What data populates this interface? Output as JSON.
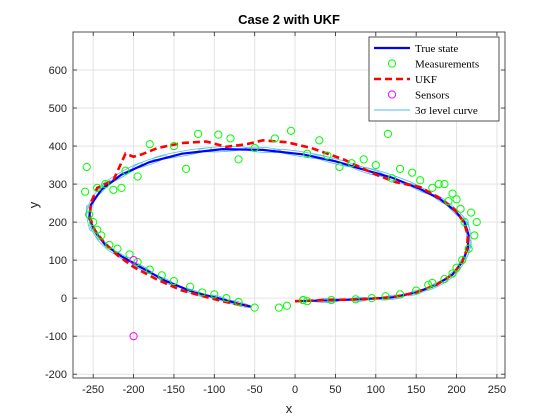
{
  "chart_data": {
    "type": "line",
    "title": "Case 2 with UKF",
    "xlabel": "x",
    "ylabel": "y",
    "xlim": [
      -275,
      260
    ],
    "ylim": [
      -210,
      700
    ],
    "xticks": [
      -250,
      -200,
      -150,
      -100,
      -50,
      0,
      50,
      100,
      150,
      200,
      250
    ],
    "yticks": [
      -200,
      -100,
      0,
      100,
      200,
      300,
      400,
      500,
      600
    ],
    "grid": true,
    "legend_position": "top-right",
    "colors": {
      "true_state": "#0000ff",
      "measurements": "#00ff00",
      "ukf": "#ff0000",
      "sensors": "#ff00ff",
      "level_curve": "#4dbeee"
    },
    "legend": [
      {
        "label": "True state",
        "style": "line"
      },
      {
        "label": "Measurements",
        "style": "circle"
      },
      {
        "label": "UKF",
        "style": "dash"
      },
      {
        "label": "Sensors",
        "style": "sensor"
      },
      {
        "label": "3σ level curve",
        "style": "thin"
      }
    ],
    "series": [
      {
        "name": "True state",
        "x": [
          0,
          40,
          80,
          120,
          150,
          175,
          195,
          207,
          214,
          215,
          210,
          198,
          180,
          155,
          120,
          90,
          50,
          10,
          -40,
          -90,
          -140,
          -180,
          -215,
          -240,
          -253,
          -255,
          -248,
          -235,
          -215,
          -190,
          -160,
          -125,
          -95,
          -70,
          -55
        ],
        "y": [
          -8,
          -6,
          -3,
          2,
          15,
          35,
          62,
          95,
          130,
          165,
          200,
          230,
          260,
          287,
          317,
          335,
          360,
          378,
          390,
          392,
          380,
          358,
          325,
          285,
          245,
          210,
          175,
          140,
          110,
          80,
          45,
          15,
          0,
          -15,
          -22
        ]
      },
      {
        "name": "UKF",
        "x": [
          0,
          40,
          80,
          120,
          150,
          175,
          195,
          207,
          213,
          214,
          209,
          198,
          180,
          155,
          125,
          100,
          80,
          60,
          40,
          20,
          -10,
          -40,
          -60,
          -85,
          -110,
          -140,
          -170,
          -190,
          -200,
          -210,
          -225,
          -245,
          -253,
          -254,
          -248,
          -235,
          -220,
          -200,
          -170,
          -140,
          -110,
          -90,
          -75,
          -60
        ],
        "y": [
          -8,
          -5,
          -3,
          2,
          15,
          35,
          62,
          95,
          130,
          165,
          200,
          232,
          262,
          292,
          305,
          325,
          345,
          365,
          380,
          395,
          410,
          415,
          405,
          398,
          412,
          408,
          395,
          378,
          372,
          380,
          310,
          290,
          250,
          212,
          178,
          143,
          113,
          82,
          48,
          20,
          3,
          -8,
          -15,
          -20
        ]
      }
    ],
    "measurements": {
      "x": [
        10,
        15,
        45,
        75,
        95,
        112,
        130,
        150,
        165,
        170,
        185,
        195,
        200,
        207,
        215,
        222,
        225,
        218,
        210,
        205,
        200,
        195,
        190,
        185,
        178,
        170,
        155,
        145,
        130,
        120,
        115,
        100,
        85,
        70,
        55,
        40,
        30,
        15,
        -5,
        -25,
        -50,
        -70,
        -80,
        -95,
        -120,
        -135,
        -150,
        -180,
        -195,
        -210,
        -215,
        -225,
        -235,
        -245,
        -255,
        -260,
        -258,
        -250,
        -245,
        -240,
        -230,
        -220,
        -205,
        -195,
        -180,
        -165,
        -150,
        -130,
        -115,
        -100,
        -85,
        -70,
        -50,
        -20,
        -10,
        10
      ],
      "y": [
        -5,
        -8,
        -5,
        -3,
        0,
        5,
        10,
        20,
        35,
        40,
        50,
        65,
        80,
        100,
        130,
        165,
        200,
        225,
        200,
        235,
        260,
        275,
        255,
        300,
        300,
        290,
        310,
        330,
        340,
        315,
        432,
        350,
        365,
        355,
        345,
        375,
        415,
        380,
        440,
        420,
        395,
        365,
        420,
        430,
        432,
        340,
        400,
        405,
        320,
        335,
        290,
        285,
        300,
        290,
        220,
        280,
        345,
        200,
        180,
        165,
        140,
        130,
        115,
        95,
        75,
        60,
        45,
        30,
        15,
        10,
        0,
        -10,
        -25,
        -25,
        -20,
        -5
      ]
    },
    "sensors": {
      "x": [
        -200,
        -200
      ],
      "y": [
        100,
        -100
      ]
    }
  }
}
